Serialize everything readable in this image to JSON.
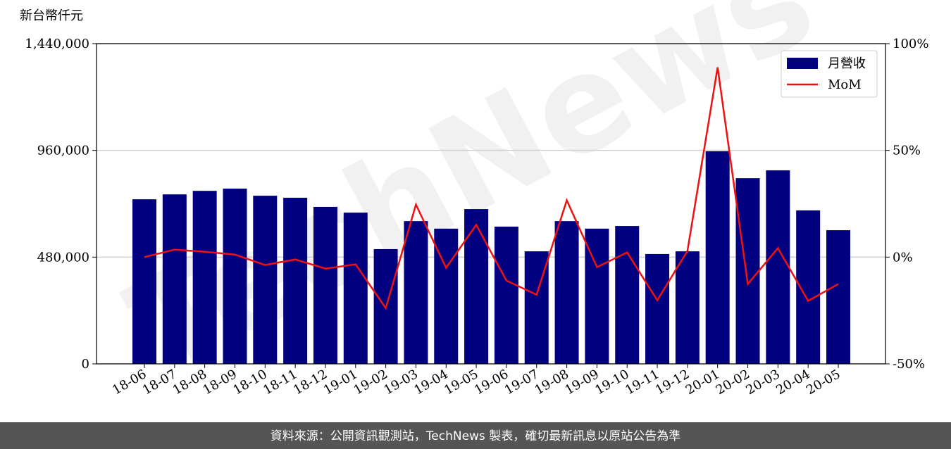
{
  "chart_data": {
    "type": "bar-line",
    "y_label": "新台幣仟元",
    "watermark": "TechNews",
    "footer": "資料來源：公開資訊觀測站，TechNews 製表，確切最新訊息以原站公告為準",
    "categories": [
      "18-06",
      "18-07",
      "18-08",
      "18-09",
      "18-10",
      "18-11",
      "18-12",
      "19-01",
      "19-02",
      "19-03",
      "19-04",
      "19-05",
      "19-06",
      "19-07",
      "19-08",
      "19-09",
      "19-10",
      "19-11",
      "19-12",
      "20-01",
      "20-02",
      "20-03",
      "20-04",
      "20-05"
    ],
    "series": [
      {
        "name": "月營收",
        "type": "bar",
        "color": "#000080",
        "values": [
          740000,
          762000,
          778000,
          788000,
          756000,
          747000,
          706000,
          680000,
          516000,
          642000,
          608000,
          696000,
          617000,
          506000,
          642000,
          608000,
          620000,
          494000,
          506000,
          956000,
          835000,
          870000,
          690000,
          601000
        ]
      },
      {
        "name": "MoM",
        "type": "line",
        "axis": "y2",
        "color": "#ee1111",
        "values": [
          0,
          3.5,
          2.5,
          1.2,
          -3.7,
          -1.1,
          -5.4,
          -3.4,
          -23.9,
          24.6,
          -5.0,
          15.1,
          -11.0,
          -17.6,
          26.6,
          -4.7,
          2.2,
          -20.2,
          2.9,
          88.9,
          -12.6,
          4.2,
          -20.5,
          -12.6
        ]
      }
    ],
    "ylim": [
      0,
      1440000
    ],
    "yticks": [
      {
        "value": 0,
        "label": "0"
      },
      {
        "value": 480000,
        "label": "480,000"
      },
      {
        "value": 960000,
        "label": "960,000"
      },
      {
        "value": 1440000,
        "label": "1,440,000"
      }
    ],
    "y2lim": [
      -50,
      100
    ],
    "y2ticks": [
      {
        "value": -50,
        "label": "-50%"
      },
      {
        "value": 0,
        "label": "0%"
      },
      {
        "value": 50,
        "label": "50%"
      },
      {
        "value": 100,
        "label": "100%"
      }
    ],
    "grid": true,
    "legend": "upper right"
  }
}
